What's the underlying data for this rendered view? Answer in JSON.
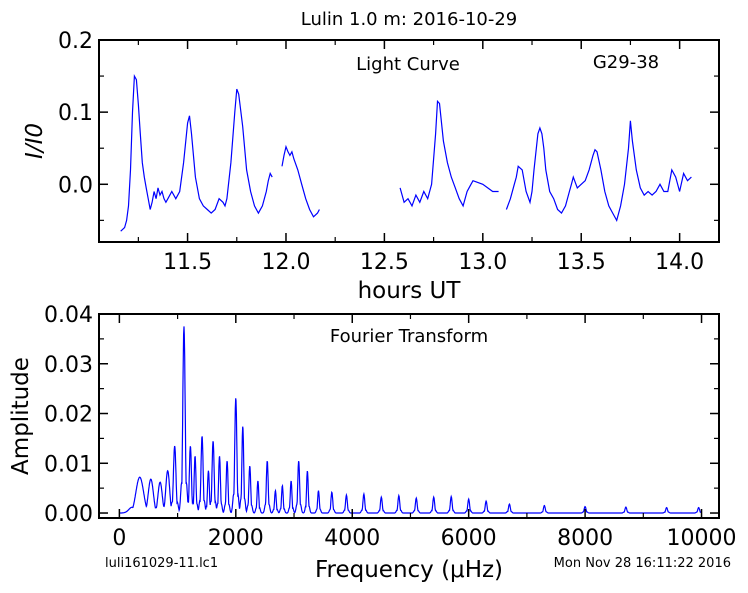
{
  "figure": {
    "title": "Lulin 1.0 m:  2016-10-29",
    "file_label": "luli161029-11.lc1",
    "timestamp": "Mon Nov 28 16:11:22 2016"
  },
  "chart_data": [
    {
      "type": "line",
      "panel": "top",
      "annotation": "Light Curve",
      "object_label": "G29-38",
      "xlabel": "hours UT",
      "ylabel": "I/I0",
      "xlim": [
        11.05,
        14.2
      ],
      "ylim": [
        -0.08,
        0.2
      ],
      "xticks": [
        11.5,
        12.0,
        12.5,
        13.0,
        13.5,
        14.0
      ],
      "xtick_labels": [
        "11.5",
        "12.0",
        "12.5",
        "13.0",
        "13.5",
        "14.0"
      ],
      "yticks": [
        0.0,
        0.1,
        0.2
      ],
      "ytick_labels": [
        "0.0",
        "0.1",
        "0.2"
      ],
      "grid": false,
      "color": "#0000ff",
      "segments": [
        [
          [
            11.16,
            -0.065
          ],
          [
            11.18,
            -0.06
          ],
          [
            11.19,
            -0.05
          ],
          [
            11.2,
            -0.03
          ],
          [
            11.21,
            0.02
          ],
          [
            11.22,
            0.1
          ],
          [
            11.23,
            0.15
          ],
          [
            11.24,
            0.145
          ],
          [
            11.25,
            0.11
          ],
          [
            11.26,
            0.07
          ],
          [
            11.27,
            0.03
          ],
          [
            11.28,
            0.01
          ],
          [
            11.29,
            -0.005
          ],
          [
            11.3,
            -0.02
          ],
          [
            11.31,
            -0.035
          ],
          [
            11.32,
            -0.025
          ],
          [
            11.33,
            -0.01
          ],
          [
            11.34,
            -0.02
          ],
          [
            11.35,
            -0.005
          ],
          [
            11.36,
            -0.015
          ],
          [
            11.37,
            -0.01
          ],
          [
            11.38,
            -0.02
          ],
          [
            11.39,
            -0.025
          ],
          [
            11.4,
            -0.02
          ],
          [
            11.42,
            -0.01
          ],
          [
            11.44,
            -0.02
          ],
          [
            11.46,
            -0.01
          ],
          [
            11.48,
            0.03
          ],
          [
            11.5,
            0.085
          ],
          [
            11.51,
            0.095
          ],
          [
            11.52,
            0.07
          ],
          [
            11.54,
            0.01
          ],
          [
            11.56,
            -0.02
          ],
          [
            11.58,
            -0.03
          ],
          [
            11.6,
            -0.035
          ],
          [
            11.62,
            -0.04
          ],
          [
            11.64,
            -0.035
          ],
          [
            11.66,
            -0.02
          ],
          [
            11.68,
            -0.025
          ],
          [
            11.69,
            -0.03
          ],
          [
            11.7,
            -0.02
          ],
          [
            11.72,
            0.03
          ],
          [
            11.74,
            0.1
          ],
          [
            11.75,
            0.132
          ],
          [
            11.76,
            0.125
          ],
          [
            11.78,
            0.08
          ],
          [
            11.8,
            0.02
          ],
          [
            11.82,
            -0.01
          ],
          [
            11.84,
            -0.03
          ],
          [
            11.86,
            -0.04
          ],
          [
            11.88,
            -0.03
          ],
          [
            11.9,
            -0.01
          ],
          [
            11.91,
            0.005
          ],
          [
            11.92,
            0.015
          ],
          [
            11.93,
            0.01
          ]
        ],
        [
          [
            11.98,
            0.025
          ],
          [
            11.99,
            0.04
          ],
          [
            12.0,
            0.052
          ],
          [
            12.01,
            0.045
          ],
          [
            12.02,
            0.04
          ],
          [
            12.03,
            0.045
          ],
          [
            12.04,
            0.035
          ],
          [
            12.06,
            0.02
          ],
          [
            12.08,
            0.0
          ],
          [
            12.1,
            -0.02
          ],
          [
            12.12,
            -0.035
          ],
          [
            12.14,
            -0.045
          ],
          [
            12.16,
            -0.04
          ],
          [
            12.17,
            -0.035
          ]
        ],
        [
          [
            12.58,
            -0.005
          ],
          [
            12.6,
            -0.025
          ],
          [
            12.62,
            -0.02
          ],
          [
            12.64,
            -0.03
          ],
          [
            12.66,
            -0.015
          ],
          [
            12.68,
            -0.025
          ],
          [
            12.7,
            -0.01
          ],
          [
            12.72,
            -0.02
          ],
          [
            12.74,
            0.0
          ],
          [
            12.76,
            0.07
          ],
          [
            12.77,
            0.115
          ],
          [
            12.78,
            0.112
          ],
          [
            12.8,
            0.06
          ],
          [
            12.82,
            0.03
          ],
          [
            12.84,
            0.01
          ],
          [
            12.86,
            -0.005
          ],
          [
            12.88,
            -0.02
          ],
          [
            12.9,
            -0.03
          ],
          [
            12.92,
            -0.01
          ],
          [
            12.94,
            0.0
          ],
          [
            12.95,
            0.005
          ],
          [
            13.0,
            0.0
          ],
          [
            13.05,
            -0.01
          ],
          [
            13.08,
            -0.01
          ]
        ],
        [
          [
            13.12,
            -0.035
          ],
          [
            13.14,
            -0.02
          ],
          [
            13.16,
            0.0
          ],
          [
            13.17,
            0.01
          ],
          [
            13.18,
            0.025
          ],
          [
            13.2,
            0.02
          ],
          [
            13.22,
            -0.01
          ],
          [
            13.24,
            -0.025
          ],
          [
            13.25,
            -0.01
          ],
          [
            13.26,
            0.02
          ],
          [
            13.28,
            0.07
          ],
          [
            13.29,
            0.078
          ],
          [
            13.3,
            0.07
          ],
          [
            13.31,
            0.05
          ],
          [
            13.32,
            0.02
          ],
          [
            13.34,
            -0.01
          ],
          [
            13.36,
            -0.02
          ],
          [
            13.38,
            -0.035
          ],
          [
            13.4,
            -0.04
          ],
          [
            13.42,
            -0.03
          ],
          [
            13.44,
            -0.01
          ],
          [
            13.45,
            0.0
          ],
          [
            13.46,
            0.01
          ],
          [
            13.48,
            -0.005
          ],
          [
            13.5,
            0.0
          ],
          [
            13.52,
            0.005
          ],
          [
            13.54,
            0.02
          ],
          [
            13.56,
            0.04
          ],
          [
            13.57,
            0.048
          ],
          [
            13.58,
            0.045
          ],
          [
            13.6,
            0.02
          ],
          [
            13.62,
            -0.01
          ],
          [
            13.64,
            -0.03
          ],
          [
            13.66,
            -0.04
          ],
          [
            13.68,
            -0.05
          ],
          [
            13.7,
            -0.03
          ],
          [
            13.72,
            0.0
          ],
          [
            13.74,
            0.05
          ],
          [
            13.75,
            0.088
          ],
          [
            13.76,
            0.06
          ],
          [
            13.78,
            0.02
          ],
          [
            13.8,
            -0.005
          ],
          [
            13.82,
            -0.015
          ],
          [
            13.84,
            -0.01
          ],
          [
            13.86,
            -0.015
          ],
          [
            13.88,
            -0.01
          ],
          [
            13.9,
            0.0
          ],
          [
            13.92,
            -0.01
          ],
          [
            13.94,
            -0.01
          ],
          [
            13.96,
            0.02
          ],
          [
            13.98,
            0.01
          ],
          [
            14.0,
            -0.01
          ],
          [
            14.02,
            0.015
          ],
          [
            14.04,
            0.005
          ],
          [
            14.06,
            0.01
          ]
        ]
      ]
    },
    {
      "type": "line",
      "panel": "bottom",
      "annotation": "Fourier Transform",
      "xlabel": "Frequency (μHz)",
      "ylabel": "Amplitude",
      "xlim": [
        -350,
        10300
      ],
      "ylim": [
        -0.001,
        0.04
      ],
      "xticks": [
        0,
        2000,
        4000,
        6000,
        8000,
        10000
      ],
      "xtick_labels": [
        "0",
        "2000",
        "4000",
        "6000",
        "8000",
        "10000"
      ],
      "yticks": [
        0.0,
        0.01,
        0.02,
        0.03,
        0.04
      ],
      "ytick_labels": [
        "0.00",
        "0.01",
        "0.02",
        "0.03",
        "0.04"
      ],
      "grid": false,
      "color": "#0000ff",
      "x_range": [
        0,
        10000
      ],
      "peaks": [
        {
          "f": 350,
          "a": 0.0072,
          "w": 90
        },
        {
          "f": 540,
          "a": 0.0068,
          "w": 60
        },
        {
          "f": 700,
          "a": 0.0062,
          "w": 50
        },
        {
          "f": 830,
          "a": 0.0085,
          "w": 45
        },
        {
          "f": 950,
          "a": 0.0135,
          "w": 30
        },
        {
          "f": 1110,
          "a": 0.0375,
          "w": 28
        },
        {
          "f": 1220,
          "a": 0.0135,
          "w": 25
        },
        {
          "f": 1300,
          "a": 0.0115,
          "w": 22
        },
        {
          "f": 1420,
          "a": 0.0155,
          "w": 25
        },
        {
          "f": 1530,
          "a": 0.0085,
          "w": 22
        },
        {
          "f": 1610,
          "a": 0.0145,
          "w": 25
        },
        {
          "f": 1720,
          "a": 0.0115,
          "w": 22
        },
        {
          "f": 1850,
          "a": 0.0105,
          "w": 22
        },
        {
          "f": 2000,
          "a": 0.0232,
          "w": 25
        },
        {
          "f": 2120,
          "a": 0.0175,
          "w": 22
        },
        {
          "f": 2240,
          "a": 0.0095,
          "w": 22
        },
        {
          "f": 2380,
          "a": 0.0065,
          "w": 20
        },
        {
          "f": 2540,
          "a": 0.0105,
          "w": 22
        },
        {
          "f": 2680,
          "a": 0.0045,
          "w": 20
        },
        {
          "f": 2800,
          "a": 0.0055,
          "w": 20
        },
        {
          "f": 2950,
          "a": 0.0065,
          "w": 20
        },
        {
          "f": 3080,
          "a": 0.0105,
          "w": 22
        },
        {
          "f": 3230,
          "a": 0.0085,
          "w": 20
        },
        {
          "f": 3420,
          "a": 0.0045,
          "w": 20
        },
        {
          "f": 3650,
          "a": 0.0042,
          "w": 22
        },
        {
          "f": 3900,
          "a": 0.0036,
          "w": 22
        },
        {
          "f": 4200,
          "a": 0.0038,
          "w": 22
        },
        {
          "f": 4500,
          "a": 0.0032,
          "w": 22
        },
        {
          "f": 4800,
          "a": 0.0035,
          "w": 22
        },
        {
          "f": 5100,
          "a": 0.003,
          "w": 22
        },
        {
          "f": 5400,
          "a": 0.0032,
          "w": 22
        },
        {
          "f": 5700,
          "a": 0.0033,
          "w": 22
        },
        {
          "f": 6000,
          "a": 0.0028,
          "w": 22
        },
        {
          "f": 6300,
          "a": 0.0024,
          "w": 22
        },
        {
          "f": 6700,
          "a": 0.0018,
          "w": 22
        },
        {
          "f": 7300,
          "a": 0.0015,
          "w": 22
        },
        {
          "f": 8000,
          "a": 0.0013,
          "w": 22
        },
        {
          "f": 8700,
          "a": 0.0012,
          "w": 22
        },
        {
          "f": 9400,
          "a": 0.0011,
          "w": 22
        },
        {
          "f": 9950,
          "a": 0.0011,
          "w": 22
        }
      ]
    }
  ]
}
